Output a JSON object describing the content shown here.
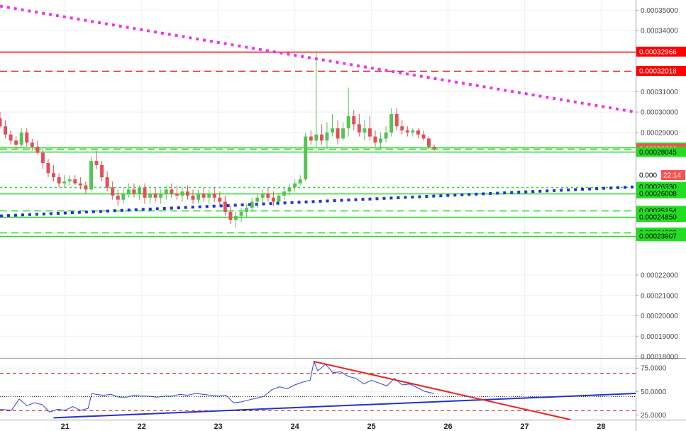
{
  "chart_data": [
    {
      "type": "candlestick",
      "ylim": [
        0.00018,
        0.000355
      ],
      "xlim": [
        20.15,
        28.45
      ],
      "x_ticks": [
        "21",
        "22",
        "23",
        "24",
        "25",
        "26",
        "27",
        "28"
      ],
      "x_tick_values": [
        21,
        22,
        23,
        24,
        25,
        26,
        27,
        28
      ],
      "y_ticks": [
        "0.00035000",
        "0.00034000",
        "0.00031000",
        "0.00030000",
        "0.00029000",
        "0.00022000",
        "0.00021000",
        "0.00020000",
        "0.00019000",
        "0.00018000"
      ],
      "y_tick_values": [
        0.00035,
        0.00034,
        0.00031,
        0.0003,
        0.00029,
        0.00022,
        0.00021,
        0.0002,
        0.00019,
        0.00018
      ],
      "up_color": "#55c455",
      "down_color": "#e0505a",
      "candles": [
        [
          20.15,
          0.000297,
          0.0003,
          0.000292,
          0.000293
        ],
        [
          20.22,
          0.000293,
          0.000296,
          0.000287,
          0.000289
        ],
        [
          20.29,
          0.000289,
          0.000291,
          0.000284,
          0.000286
        ],
        [
          20.36,
          0.000286,
          0.000288,
          0.000282,
          0.000284
        ],
        [
          20.43,
          0.000284,
          0.000292,
          0.000283,
          0.00029
        ],
        [
          20.5,
          0.00029,
          0.000292,
          0.000283,
          0.000285
        ],
        [
          20.57,
          0.000285,
          0.000287,
          0.000281,
          0.000283
        ],
        [
          20.64,
          0.000283,
          0.000286,
          0.000279,
          0.00028
        ],
        [
          20.71,
          0.00028,
          0.000282,
          0.000272,
          0.000275
        ],
        [
          20.78,
          0.000275,
          0.000277,
          0.000268,
          0.00027
        ],
        [
          20.85,
          0.00027,
          0.000274,
          0.000266,
          0.000268
        ],
        [
          20.92,
          0.000268,
          0.00027,
          0.000263,
          0.000265
        ],
        [
          20.99,
          0.000265,
          0.000269,
          0.000263,
          0.000266
        ],
        [
          21.06,
          0.000266,
          0.000269,
          0.000264,
          0.000267
        ],
        [
          21.13,
          0.000267,
          0.000269,
          0.000264,
          0.000265
        ],
        [
          21.2,
          0.000265,
          0.000268,
          0.000262,
          0.000264
        ],
        [
          21.27,
          0.000264,
          0.000266,
          0.00026,
          0.000262
        ],
        [
          21.34,
          0.000262,
          0.000278,
          0.000261,
          0.000276
        ],
        [
          21.41,
          0.000276,
          0.000281,
          0.000272,
          0.000274
        ],
        [
          21.48,
          0.000274,
          0.000276,
          0.000266,
          0.000268
        ],
        [
          21.55,
          0.000268,
          0.000271,
          0.000261,
          0.000263
        ],
        [
          21.62,
          0.000263,
          0.000266,
          0.000257,
          0.000259
        ],
        [
          21.69,
          0.000259,
          0.000262,
          0.000254,
          0.000257
        ],
        [
          21.76,
          0.000257,
          0.000263,
          0.000255,
          0.00026
        ],
        [
          21.83,
          0.00026,
          0.000265,
          0.000258,
          0.000262
        ],
        [
          21.9,
          0.000262,
          0.000265,
          0.000258,
          0.00026
        ],
        [
          21.97,
          0.00026,
          0.000264,
          0.000257,
          0.000263
        ],
        [
          22.04,
          0.000263,
          0.000265,
          0.000255,
          0.000258
        ],
        [
          22.11,
          0.000258,
          0.000262,
          0.000255,
          0.00026
        ],
        [
          22.18,
          0.00026,
          0.000263,
          0.000256,
          0.000258
        ],
        [
          22.25,
          0.000258,
          0.000262,
          0.000255,
          0.00026
        ],
        [
          22.32,
          0.00026,
          0.000264,
          0.000257,
          0.000262
        ],
        [
          22.39,
          0.000262,
          0.000265,
          0.000258,
          0.00026
        ],
        [
          22.46,
          0.00026,
          0.000264,
          0.000257,
          0.000259
        ],
        [
          22.53,
          0.000259,
          0.000263,
          0.000256,
          0.000261
        ],
        [
          22.6,
          0.000261,
          0.000264,
          0.000257,
          0.000259
        ],
        [
          22.67,
          0.000259,
          0.000262,
          0.000255,
          0.000257
        ],
        [
          22.74,
          0.000257,
          0.000262,
          0.000255,
          0.00026
        ],
        [
          22.81,
          0.00026,
          0.000263,
          0.000256,
          0.000258
        ],
        [
          22.88,
          0.000258,
          0.000262,
          0.000255,
          0.00026
        ],
        [
          22.95,
          0.00026,
          0.000263,
          0.000256,
          0.000258
        ],
        [
          23.02,
          0.000258,
          0.000261,
          0.000254,
          0.000256
        ],
        [
          23.09,
          0.000256,
          0.000259,
          0.000249,
          0.000251
        ],
        [
          23.16,
          0.000251,
          0.000254,
          0.000245,
          0.000247
        ],
        [
          23.23,
          0.000247,
          0.000251,
          0.000243,
          0.000249
        ],
        [
          23.3,
          0.000249,
          0.000253,
          0.000246,
          0.000251
        ],
        [
          23.37,
          0.000251,
          0.000255,
          0.000248,
          0.000253
        ],
        [
          23.44,
          0.000253,
          0.000258,
          0.000251,
          0.000256
        ],
        [
          23.51,
          0.000256,
          0.00026,
          0.000253,
          0.000258
        ],
        [
          23.58,
          0.000258,
          0.000262,
          0.000255,
          0.00026
        ],
        [
          23.65,
          0.00026,
          0.000263,
          0.000256,
          0.000258
        ],
        [
          23.72,
          0.000258,
          0.000261,
          0.000254,
          0.000256
        ],
        [
          23.79,
          0.000256,
          0.00026,
          0.000254,
          0.000259
        ],
        [
          23.86,
          0.000259,
          0.000263,
          0.000257,
          0.000261
        ],
        [
          23.93,
          0.000261,
          0.000265,
          0.000259,
          0.000263
        ],
        [
          24.0,
          0.000263,
          0.000267,
          0.000261,
          0.000265
        ],
        [
          24.07,
          0.000265,
          0.000269,
          0.000264,
          0.000267
        ],
        [
          24.14,
          0.000267,
          0.00029,
          0.000266,
          0.000288
        ],
        [
          24.21,
          0.000288,
          0.000291,
          0.000284,
          0.000286
        ],
        [
          24.28,
          0.000286,
          0.00033,
          0.000283,
          0.000289
        ],
        [
          24.35,
          0.000289,
          0.000294,
          0.000284,
          0.000286
        ],
        [
          24.42,
          0.000286,
          0.000295,
          0.000282,
          0.00029
        ],
        [
          24.49,
          0.00029,
          0.000299,
          0.000288,
          0.000292
        ],
        [
          24.56,
          0.000292,
          0.000296,
          0.000284,
          0.000287
        ],
        [
          24.63,
          0.000287,
          0.000295,
          0.000286,
          0.000292
        ],
        [
          24.7,
          0.000292,
          0.000312,
          0.000288,
          0.000298
        ],
        [
          24.77,
          0.000298,
          0.000301,
          0.000291,
          0.000294
        ],
        [
          24.84,
          0.000294,
          0.000299,
          0.000288,
          0.00029
        ],
        [
          24.91,
          0.00029,
          0.000296,
          0.000286,
          0.000292
        ],
        [
          24.98,
          0.000292,
          0.000298,
          0.000286,
          0.000288
        ],
        [
          25.05,
          0.000288,
          0.000291,
          0.000283,
          0.000285
        ],
        [
          25.12,
          0.000285,
          0.00029,
          0.000282,
          0.000287
        ],
        [
          25.19,
          0.000287,
          0.000293,
          0.000285,
          0.00029
        ],
        [
          25.26,
          0.00029,
          0.000302,
          0.000288,
          0.000299
        ],
        [
          25.33,
          0.000299,
          0.000302,
          0.000291,
          0.000293
        ],
        [
          25.4,
          0.000293,
          0.000296,
          0.000289,
          0.000291
        ],
        [
          25.47,
          0.000291,
          0.000293,
          0.000288,
          0.00029
        ],
        [
          25.54,
          0.00029,
          0.000292,
          0.000288,
          0.000291
        ],
        [
          25.61,
          0.000291,
          0.000292,
          0.000287,
          0.000289
        ],
        [
          25.68,
          0.000289,
          0.000291,
          0.000286,
          0.000287
        ],
        [
          25.75,
          0.000287,
          0.000288,
          0.000282,
          0.000283
        ],
        [
          25.82,
          0.000283,
          0.000284,
          0.000281,
          0.000282
        ]
      ],
      "levels": [
        {
          "value": 0.00032966,
          "label": "0.00032966",
          "color": "#ff0000",
          "style": "solid",
          "tag_bg": "#ff0000"
        },
        {
          "value": 0.00032018,
          "label": "0.00032018",
          "color": "#e02020",
          "style": "dashed",
          "tag_bg": "#ff0000"
        },
        {
          "value": 0.00028258,
          "label": "0.00028258",
          "color": "#22dd22",
          "style": "solid",
          "tag_bg": "#22dd22"
        },
        {
          "value": 0.00028202,
          "label": "0.00028202",
          "color": "#22dd22",
          "style": "dashed",
          "tag_bg": "#ff5050"
        },
        {
          "value": 0.00028045,
          "label": "0.00028045",
          "color": "#22dd22",
          "style": "solid",
          "tag_bg": "#22dd22"
        },
        {
          "value": 0.0002633,
          "label": "0.00026330",
          "color": "#22dd22",
          "style": "dotted",
          "tag_bg": "#22dd22"
        },
        {
          "value": 0.00026008,
          "label": "0.00026008",
          "color": "#22dd22",
          "style": "solid",
          "tag_bg": "#22dd22"
        },
        {
          "value": 0.00025154,
          "label": "0.00025154",
          "color": "#22dd22",
          "style": "dashed",
          "tag_bg": "#22dd22"
        },
        {
          "value": 0.0002485,
          "label": "0.00024850",
          "color": "#22dd22",
          "style": "solid",
          "tag_bg": "#22dd22"
        },
        {
          "value": 0.00024089,
          "label": "0.00024089",
          "color": "#22dd22",
          "style": "dashed",
          "tag_bg": "#22dd22"
        },
        {
          "value": 0.00023907,
          "label": "0.00023907",
          "color": "#22dd22",
          "style": "solid",
          "tag_bg": "#22dd22"
        }
      ],
      "current_price_tag": {
        "text": "0.000",
        "countdown": "22:14",
        "bg": "#ff5050"
      },
      "trendlines": [
        {
          "name": "",
          "color": "#ee33ee",
          "style": "dotted",
          "points": [
            [
              20.15,
              0.000352
            ],
            [
              28.45,
              0.0003
            ]
          ]
        },
        {
          "name": "",
          "color": "#2233cc",
          "style": "dotted",
          "points": [
            [
              20.15,
              0.000249
            ],
            [
              28.45,
              0.0002633
            ]
          ]
        }
      ]
    },
    {
      "type": "line",
      "ylim": [
        20,
        85
      ],
      "y_ticks": [
        "75.0000",
        "50.0000",
        "25.0000"
      ],
      "y_tick_values": [
        75,
        50,
        25
      ],
      "levels": [
        {
          "value": 70,
          "color": "#cc2222",
          "style": "dashed"
        },
        {
          "value": 45,
          "color": "#222222",
          "style": "dotted"
        },
        {
          "value": 30,
          "color": "#cc2222",
          "style": "dashed"
        }
      ],
      "series": [
        {
          "name": "",
          "color": "#3344cc",
          "x": [
            20.15,
            20.3,
            20.4,
            20.5,
            20.6,
            20.7,
            20.8,
            20.9,
            21.0,
            21.1,
            21.2,
            21.3,
            21.35,
            21.4,
            21.5,
            21.6,
            21.7,
            21.8,
            21.9,
            22.0,
            22.1,
            22.2,
            22.3,
            22.4,
            22.5,
            22.6,
            22.7,
            22.8,
            22.9,
            23.0,
            23.1,
            23.2,
            23.3,
            23.4,
            23.5,
            23.6,
            23.7,
            23.8,
            23.9,
            24.0,
            24.1,
            24.2,
            24.25,
            24.3,
            24.4,
            24.5,
            24.6,
            24.7,
            24.8,
            24.9,
            25.0,
            25.1,
            25.2,
            25.3,
            25.4,
            25.5,
            25.6,
            25.7,
            25.82
          ],
          "values": [
            31,
            30,
            42,
            35,
            38,
            36,
            28,
            31,
            30,
            34,
            30,
            32,
            48,
            47,
            46,
            47,
            44,
            44,
            46,
            45,
            45,
            44,
            45,
            45,
            47,
            46,
            48,
            47,
            46,
            45,
            46,
            38,
            39,
            41,
            43,
            45,
            52,
            55,
            53,
            57,
            60,
            62,
            82,
            72,
            79,
            70,
            71,
            66,
            64,
            58,
            62,
            59,
            56,
            64,
            57,
            58,
            54,
            50,
            48
          ]
        }
      ],
      "trendlines": [
        {
          "name": "",
          "color": "#2233cc",
          "style": "solid",
          "points": [
            [
              20.85,
              22
            ],
            [
              28.45,
              48
            ]
          ]
        },
        {
          "name": "",
          "color": "#ee2222",
          "style": "solid",
          "points": [
            [
              24.25,
              82
            ],
            [
              27.6,
              20
            ]
          ]
        }
      ]
    }
  ]
}
